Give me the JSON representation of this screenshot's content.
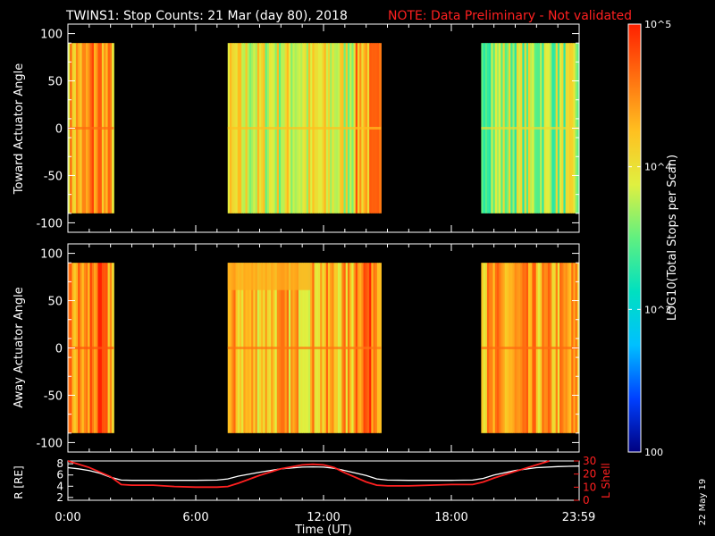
{
  "header": {
    "title": "TWINS1: Stop Counts: 21 Mar (day  80), 2018",
    "note": "NOTE: Data Preliminary - Not validated"
  },
  "stamp": "22 May 19",
  "colorbar": {
    "label": "LOG10(Total Stops per Scan)",
    "ticks": [
      {
        "value": 100,
        "label": "100"
      },
      {
        "value": 1000,
        "label": "10^3"
      },
      {
        "value": 10000,
        "label": "10^4"
      },
      {
        "value": 100000,
        "label": "10^5"
      }
    ],
    "scale": "log",
    "colors": [
      "#000080",
      "#0040ff",
      "#00c0ff",
      "#00e0c0",
      "#60f080",
      "#e0f040",
      "#ffc020",
      "#ff7010",
      "#ff2000"
    ]
  },
  "chart_data": [
    {
      "type": "heatmap",
      "name": "toward-panel",
      "ylabel": "Toward Actuator Angle",
      "yticks": [
        100,
        50,
        0,
        -50,
        -100
      ],
      "ylim": [
        -110,
        110
      ],
      "data_yrange": [
        -90,
        90
      ],
      "xlim": [
        0,
        24
      ],
      "blocks": [
        {
          "start": 0.0,
          "end": 2.15,
          "level": 4.3
        },
        {
          "start": 7.5,
          "end": 14.7,
          "level": 3.9
        },
        {
          "start": 19.4,
          "end": 24.0,
          "level": 3.7
        }
      ]
    },
    {
      "type": "heatmap",
      "name": "away-panel",
      "ylabel": "Away Actuator Angle",
      "yticks": [
        100,
        50,
        0,
        -50,
        -100
      ],
      "ylim": [
        -110,
        110
      ],
      "data_yrange": [
        -90,
        90
      ],
      "xlim": [
        0,
        24
      ],
      "blocks": [
        {
          "start": 0.0,
          "end": 2.15,
          "level": 4.4
        },
        {
          "start": 7.5,
          "end": 14.7,
          "level": 4.25
        },
        {
          "start": 19.4,
          "end": 24.0,
          "level": 4.3
        }
      ]
    },
    {
      "type": "line",
      "name": "orbit-panel",
      "xlabel": "Time (UT)",
      "xticks": [
        "0:00",
        "6:00",
        "12:00",
        "18:00",
        "23:59"
      ],
      "xtick_values": [
        0,
        6,
        12,
        18,
        23.98
      ],
      "left_axis": {
        "label": "R [RE]",
        "ticks": [
          8,
          6,
          4,
          2
        ],
        "ylim": [
          1.5,
          8.5
        ]
      },
      "right_axis": {
        "label": "L Shell",
        "ticks": [
          30,
          20,
          10,
          0
        ],
        "ylim": [
          0,
          30
        ]
      },
      "series": [
        {
          "name": "R [RE]",
          "color": "#ffffff",
          "x": [
            0,
            0.5,
            1,
            1.5,
            2,
            2.5,
            3,
            4,
            5,
            6,
            7,
            7.5,
            8,
            9,
            10,
            11,
            11.5,
            12,
            12.5,
            13,
            14,
            14.5,
            15,
            16,
            17,
            18,
            19,
            19.5,
            20,
            21,
            22,
            23,
            24
          ],
          "y": [
            7.3,
            7.1,
            6.8,
            6.3,
            5.6,
            5.1,
            5.05,
            5.05,
            5.05,
            5.05,
            5.1,
            5.3,
            5.8,
            6.5,
            7.1,
            7.4,
            7.45,
            7.4,
            7.2,
            6.8,
            5.9,
            5.3,
            5.1,
            5.05,
            5.05,
            5.05,
            5.1,
            5.4,
            6.0,
            6.8,
            7.3,
            7.5,
            7.6
          ]
        },
        {
          "name": "L Shell",
          "color": "#ff2020",
          "x": [
            0,
            1,
            2,
            2.5,
            3,
            4,
            5,
            6,
            7,
            7.5,
            8,
            9,
            10,
            11,
            11.5,
            12,
            12.5,
            13,
            14,
            14.5,
            15,
            16,
            17,
            18,
            19,
            19.5,
            20,
            21,
            22,
            22.6
          ],
          "y": [
            30,
            25,
            18,
            12,
            11.5,
            11.5,
            10.5,
            10,
            10,
            10.5,
            13,
            19,
            24,
            27,
            27.5,
            27,
            25,
            21,
            14,
            11.5,
            11,
            11,
            11.5,
            12,
            12,
            14,
            17,
            22,
            27,
            30
          ]
        }
      ]
    }
  ]
}
